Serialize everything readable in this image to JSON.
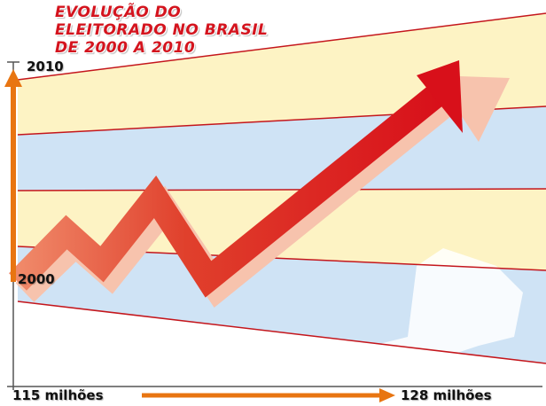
{
  "chart_data": {
    "type": "line",
    "title": "EVOLUÇÃO DO ELEITORADO NO BRASIL DE 2000 A 2010",
    "title_lines": [
      "EVOLUÇÃO DO",
      "ELEITORADO NO BRASIL",
      "DE 2000 A 2010"
    ],
    "y_ticks": [
      "2000",
      "2010"
    ],
    "x_ticks": [
      "115 milhões",
      "128 milhões"
    ],
    "trend": "up",
    "colors": {
      "arrow": "#d9141b",
      "axis_arrow": "#e87511",
      "band_yellow": "#fdf3c4",
      "band_blue": "#cfe3f5",
      "grid_line": "#c4161c"
    }
  }
}
